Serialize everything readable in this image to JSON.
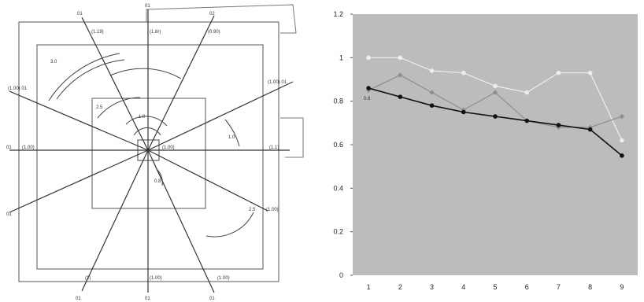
{
  "chart_data": [
    {
      "type": "diagram",
      "labels": {
        "n_outer": "01",
        "n_inner": "(1.8r)",
        "nnw_outer": "01",
        "nnw_inner": "(1.19)",
        "nne_outer": "02",
        "nne_inner": "(0.90)",
        "wnw_outer": "(1.00) 01",
        "wnw_inner": "3.0",
        "ene_outer": "(1.00) 01",
        "w_outer": "01",
        "w_inner": "(1.00)",
        "e_outer": "(1.1)",
        "e_inner": "(1.00)",
        "wsw_outer": "01",
        "ese_outer": "(1.00)",
        "ssw_outer": "01",
        "ssw_inner": "(1)",
        "s_outer": "01",
        "s_inner": "(1.00)",
        "sse_outer": "01",
        "sse_inner": "(1.00)",
        "angle_nw": "2.5",
        "angle_e": "1.0",
        "angle_c": "1.0",
        "angle_s": "0.8",
        "angle_se": "2.5"
      }
    },
    {
      "type": "line",
      "x": [
        1,
        2,
        3,
        4,
        5,
        6,
        7,
        8,
        9
      ],
      "xticks": [
        "1",
        "2",
        "3",
        "4",
        "5",
        "6",
        "7",
        "8",
        "9"
      ],
      "yticks": [
        "0",
        "0.2",
        "0.4",
        "0.6",
        "0.8",
        "1",
        "1.2"
      ],
      "ylim": [
        0,
        1.2
      ],
      "xlim": [
        0.5,
        9.5
      ],
      "plot_bg": "#bcbcbc",
      "series": [
        {
          "color": "#eeeeee",
          "marker": "circle",
          "values": [
            1.0,
            1.0,
            0.94,
            0.93,
            0.87,
            0.84,
            0.93,
            0.93,
            0.62
          ]
        },
        {
          "color": "#8e8e8e",
          "marker": "diamond",
          "values": [
            0.85,
            0.92,
            0.84,
            0.76,
            0.84,
            0.71,
            0.68,
            0.68,
            0.73
          ]
        },
        {
          "color": "#111111",
          "marker": "circle",
          "values": [
            0.86,
            0.82,
            0.78,
            0.75,
            0.73,
            0.71,
            0.69,
            0.67,
            0.55
          ]
        }
      ],
      "data_labels": [
        {
          "series": 1,
          "index": 0,
          "text": "0.8"
        }
      ]
    }
  ]
}
